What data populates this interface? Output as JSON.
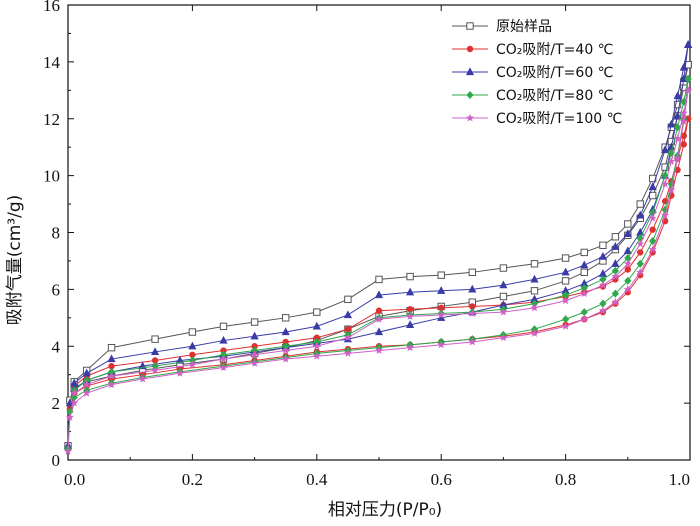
{
  "chart_data": {
    "type": "line",
    "xlabel": "相对压力(P/P₀)",
    "ylabel": "吸附气量(cm³/g)",
    "xlim": [
      0,
      1.0
    ],
    "ylim": [
      0,
      16
    ],
    "xticks": [
      "0.0",
      "0.2",
      "0.4",
      "0.6",
      "0.8",
      "1.0"
    ],
    "yticks": [
      "0",
      "2",
      "4",
      "6",
      "8",
      "10",
      "12",
      "14",
      "16"
    ],
    "grid": false,
    "legend": "top-right",
    "series": [
      {
        "name": "原始样品",
        "color": "#555555",
        "marker": "square",
        "adsorption": {
          "x": [
            0.0,
            0.003,
            0.01,
            0.03,
            0.07,
            0.12,
            0.18,
            0.25,
            0.3,
            0.35,
            0.4,
            0.45,
            0.5,
            0.55,
            0.6,
            0.65,
            0.7,
            0.75,
            0.8,
            0.83,
            0.86,
            0.88,
            0.9,
            0.92,
            0.94,
            0.96,
            0.97,
            0.98,
            0.99,
            0.997
          ],
          "y": [
            0.5,
            2.1,
            2.55,
            2.75,
            2.95,
            3.15,
            3.35,
            3.55,
            3.75,
            3.95,
            4.2,
            4.6,
            5.05,
            5.25,
            5.4,
            5.55,
            5.75,
            5.95,
            6.3,
            6.6,
            7.0,
            7.4,
            7.9,
            8.5,
            9.3,
            10.3,
            11.2,
            12.1,
            13.1,
            13.9
          ]
        },
        "desorption": {
          "x": [
            0.997,
            0.99,
            0.98,
            0.97,
            0.96,
            0.94,
            0.92,
            0.9,
            0.88,
            0.86,
            0.83,
            0.8,
            0.75,
            0.7,
            0.65,
            0.6,
            0.55,
            0.5,
            0.45,
            0.4,
            0.35,
            0.3,
            0.25,
            0.2,
            0.14,
            0.07,
            0.03,
            0.01
          ],
          "y": [
            13.9,
            13.3,
            12.5,
            11.7,
            11.0,
            9.9,
            9.0,
            8.3,
            7.85,
            7.55,
            7.3,
            7.1,
            6.9,
            6.75,
            6.6,
            6.5,
            6.45,
            6.35,
            5.65,
            5.2,
            5.0,
            4.85,
            4.7,
            4.5,
            4.25,
            3.95,
            3.15,
            2.75
          ]
        }
      },
      {
        "name": "CO₂吸附/T=40 ℃",
        "color": "#e03030",
        "marker": "circle",
        "adsorption": {
          "x": [
            0.0,
            0.003,
            0.01,
            0.03,
            0.07,
            0.12,
            0.18,
            0.25,
            0.3,
            0.35,
            0.4,
            0.45,
            0.5,
            0.55,
            0.6,
            0.65,
            0.7,
            0.75,
            0.8,
            0.83,
            0.86,
            0.88,
            0.9,
            0.92,
            0.94,
            0.96,
            0.97,
            0.98,
            0.99,
            0.997
          ],
          "y": [
            0.4,
            1.8,
            2.35,
            2.6,
            2.85,
            3.0,
            3.2,
            3.35,
            3.5,
            3.65,
            3.8,
            3.9,
            4.0,
            4.05,
            4.15,
            4.25,
            4.35,
            4.5,
            4.75,
            4.95,
            5.2,
            5.5,
            5.9,
            6.5,
            7.3,
            8.4,
            9.3,
            10.2,
            11.1,
            12.0
          ]
        },
        "desorption": {
          "x": [
            0.997,
            0.99,
            0.98,
            0.97,
            0.96,
            0.94,
            0.92,
            0.9,
            0.88,
            0.86,
            0.83,
            0.8,
            0.75,
            0.7,
            0.65,
            0.6,
            0.55,
            0.5,
            0.45,
            0.4,
            0.35,
            0.3,
            0.25,
            0.2,
            0.14,
            0.07,
            0.03,
            0.01
          ],
          "y": [
            12.0,
            11.4,
            10.6,
            9.8,
            9.1,
            8.1,
            7.3,
            6.7,
            6.35,
            6.1,
            5.9,
            5.75,
            5.55,
            5.45,
            5.4,
            5.35,
            5.3,
            5.25,
            4.6,
            4.3,
            4.15,
            4.0,
            3.85,
            3.7,
            3.5,
            3.3,
            2.95,
            2.6
          ]
        }
      },
      {
        "name": "CO₂吸附/T=60 ℃",
        "color": "#3a3aa8",
        "marker": "triangle",
        "adsorption": {
          "x": [
            0.0,
            0.003,
            0.01,
            0.03,
            0.07,
            0.12,
            0.18,
            0.25,
            0.3,
            0.35,
            0.4,
            0.45,
            0.5,
            0.55,
            0.6,
            0.65,
            0.7,
            0.75,
            0.8,
            0.83,
            0.86,
            0.88,
            0.9,
            0.92,
            0.94,
            0.96,
            0.97,
            0.98,
            0.99,
            0.997
          ],
          "y": [
            0.5,
            2.0,
            2.5,
            2.8,
            3.1,
            3.3,
            3.5,
            3.65,
            3.8,
            3.95,
            4.1,
            4.25,
            4.5,
            4.75,
            5.0,
            5.2,
            5.45,
            5.65,
            5.95,
            6.2,
            6.55,
            6.9,
            7.35,
            8.0,
            8.8,
            10.0,
            11.0,
            12.1,
            13.4,
            14.6
          ]
        },
        "desorption": {
          "x": [
            0.997,
            0.99,
            0.98,
            0.97,
            0.96,
            0.94,
            0.92,
            0.9,
            0.88,
            0.86,
            0.83,
            0.8,
            0.75,
            0.7,
            0.65,
            0.6,
            0.55,
            0.5,
            0.45,
            0.4,
            0.35,
            0.3,
            0.25,
            0.2,
            0.14,
            0.07,
            0.03,
            0.01
          ],
          "y": [
            14.6,
            13.8,
            12.8,
            11.8,
            10.9,
            9.6,
            8.6,
            7.95,
            7.5,
            7.15,
            6.85,
            6.6,
            6.35,
            6.15,
            6.0,
            5.95,
            5.9,
            5.8,
            5.1,
            4.7,
            4.5,
            4.35,
            4.2,
            4.0,
            3.8,
            3.55,
            3.05,
            2.7
          ]
        }
      },
      {
        "name": "CO₂吸附/T=80 ℃",
        "color": "#2ea84a",
        "marker": "diamond",
        "adsorption": {
          "x": [
            0.0,
            0.003,
            0.01,
            0.03,
            0.07,
            0.12,
            0.18,
            0.25,
            0.3,
            0.35,
            0.4,
            0.45,
            0.5,
            0.55,
            0.6,
            0.65,
            0.7,
            0.75,
            0.8,
            0.83,
            0.86,
            0.88,
            0.9,
            0.92,
            0.94,
            0.96,
            0.97,
            0.98,
            0.99,
            0.997
          ],
          "y": [
            0.4,
            1.7,
            2.2,
            2.45,
            2.7,
            2.9,
            3.1,
            3.3,
            3.45,
            3.6,
            3.75,
            3.85,
            3.95,
            4.05,
            4.15,
            4.25,
            4.4,
            4.6,
            4.95,
            5.2,
            5.5,
            5.85,
            6.3,
            6.9,
            7.7,
            8.8,
            9.7,
            10.7,
            12.0,
            13.4
          ]
        },
        "desorption": {
          "x": [
            0.997,
            0.99,
            0.98,
            0.97,
            0.96,
            0.94,
            0.92,
            0.9,
            0.88,
            0.86,
            0.83,
            0.8,
            0.75,
            0.7,
            0.65,
            0.6,
            0.55,
            0.5,
            0.45,
            0.4,
            0.35,
            0.3,
            0.25,
            0.2,
            0.14,
            0.07,
            0.03,
            0.01
          ],
          "y": [
            13.4,
            12.6,
            11.7,
            10.8,
            10.0,
            8.7,
            7.8,
            7.1,
            6.65,
            6.35,
            6.05,
            5.8,
            5.5,
            5.3,
            5.2,
            5.15,
            5.1,
            5.0,
            4.4,
            4.15,
            4.0,
            3.85,
            3.7,
            3.5,
            3.3,
            3.1,
            2.8,
            2.45
          ]
        }
      },
      {
        "name": "CO₂吸附/T=100 ℃",
        "color": "#d060c8",
        "marker": "star",
        "adsorption": {
          "x": [
            0.0,
            0.003,
            0.01,
            0.03,
            0.07,
            0.12,
            0.18,
            0.25,
            0.3,
            0.35,
            0.4,
            0.45,
            0.5,
            0.55,
            0.6,
            0.65,
            0.7,
            0.75,
            0.8,
            0.83,
            0.86,
            0.88,
            0.9,
            0.92,
            0.94,
            0.96,
            0.97,
            0.98,
            0.99,
            0.997
          ],
          "y": [
            0.3,
            1.5,
            2.0,
            2.35,
            2.65,
            2.85,
            3.05,
            3.25,
            3.4,
            3.55,
            3.65,
            3.75,
            3.85,
            3.95,
            4.05,
            4.15,
            4.3,
            4.45,
            4.7,
            4.95,
            5.25,
            5.55,
            6.0,
            6.6,
            7.4,
            8.6,
            9.5,
            10.6,
            11.9,
            13.0
          ]
        },
        "desorption": {
          "x": [
            0.997,
            0.99,
            0.98,
            0.97,
            0.96,
            0.94,
            0.92,
            0.9,
            0.88,
            0.86,
            0.83,
            0.8,
            0.75,
            0.7,
            0.65,
            0.6,
            0.55,
            0.5,
            0.45,
            0.4,
            0.35,
            0.3,
            0.25,
            0.2,
            0.14,
            0.07,
            0.03,
            0.01
          ],
          "y": [
            13.0,
            12.2,
            11.3,
            10.5,
            9.7,
            8.5,
            7.6,
            6.9,
            6.45,
            6.15,
            5.85,
            5.6,
            5.35,
            5.2,
            5.15,
            5.1,
            5.05,
            4.95,
            4.3,
            4.0,
            3.85,
            3.7,
            3.55,
            3.35,
            3.15,
            2.95,
            2.65,
            2.35
          ]
        }
      }
    ]
  }
}
